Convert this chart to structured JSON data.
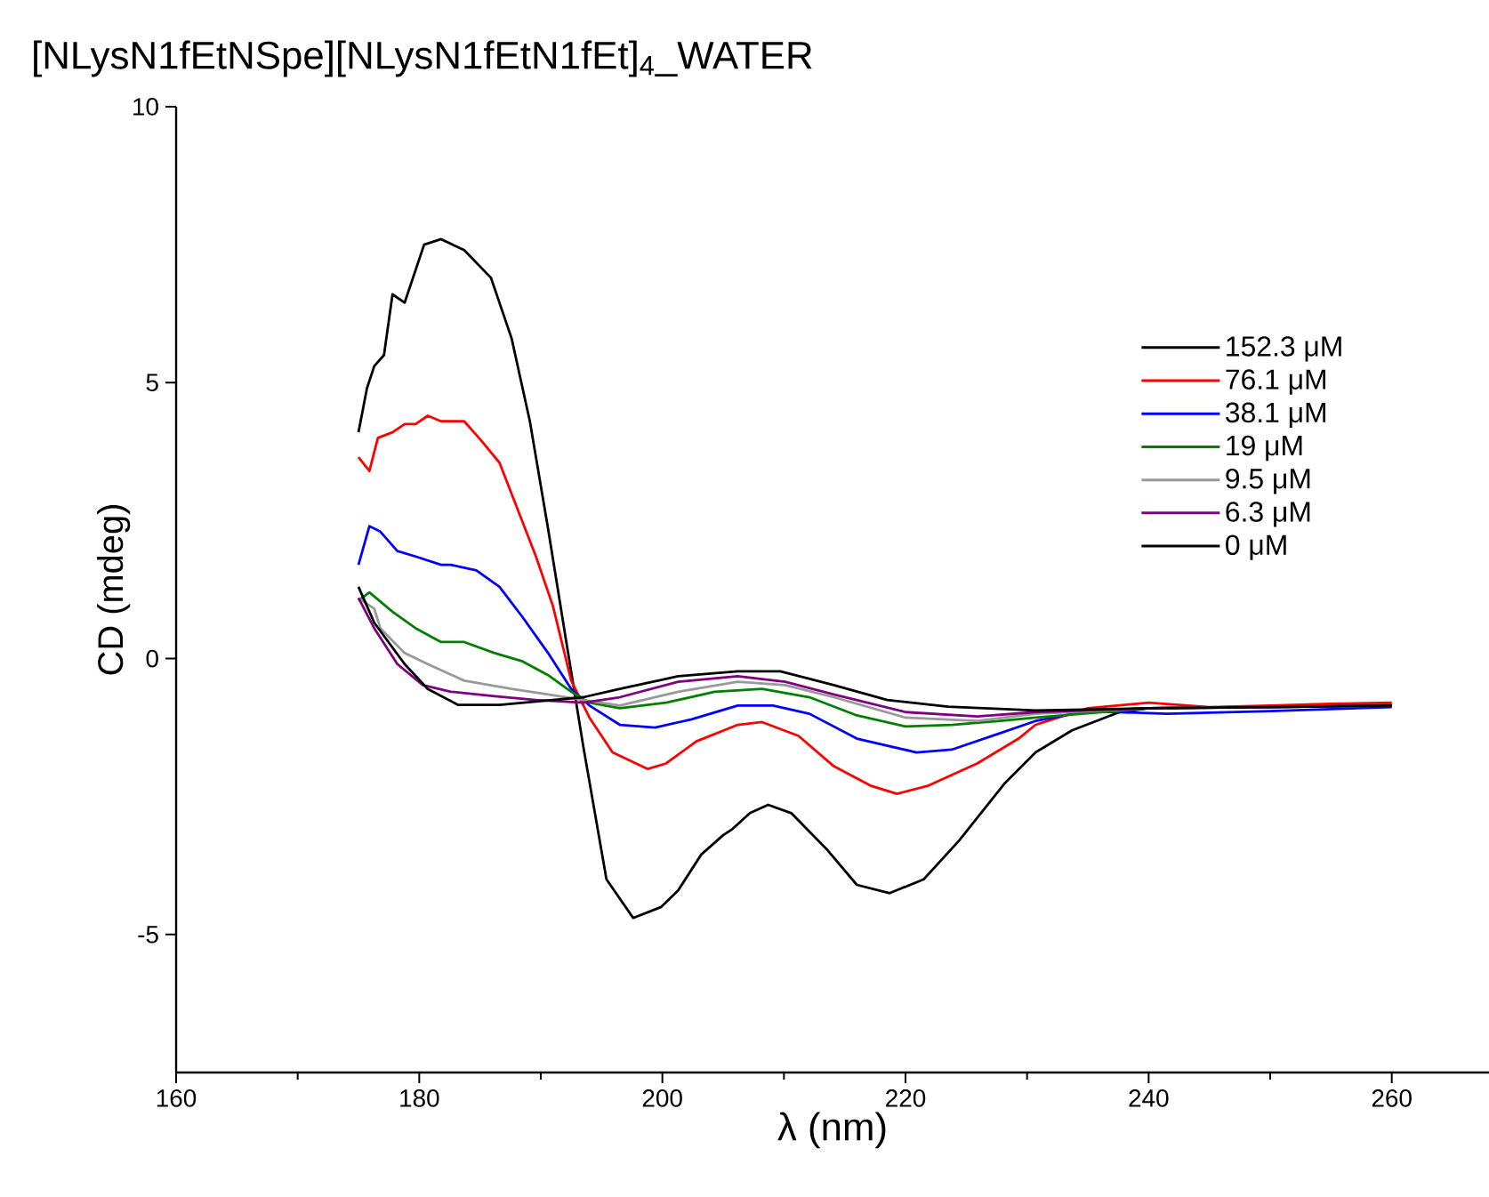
{
  "chart_data": {
    "type": "line",
    "title": "[NLysN1fEtNSpe][NLysN1fEtN1fEt]$_{4}$_WATER",
    "xlabel": "λ (nm)",
    "ylabel": "CD (mdeg)",
    "xlim": [
      160,
      268
    ],
    "ylim": [
      -7.5,
      10
    ],
    "xticks": [
      160,
      180,
      200,
      220,
      240,
      260
    ],
    "yticks": [
      -5,
      0,
      5,
      10
    ],
    "legend": "top right",
    "grid": false,
    "marker": "none",
    "line_style": "solid",
    "series": [
      {
        "name": "152.3 μM",
        "color": "#000000",
        "x": [
          175,
          175.7,
          176.3,
          177.1,
          177.8,
          178.8,
          180.4,
          181.8,
          183.7,
          185.9,
          187.6,
          189.1,
          190.6,
          192.1,
          193.5,
          195.4,
          197.6,
          199.9,
          201.3,
          203.2,
          205,
          205.7,
          207.2,
          208.7,
          210.6,
          213.5,
          216,
          218.7,
          221.5,
          224.4,
          228.2,
          230.7,
          233.7,
          237.6,
          240,
          250,
          260
        ],
        "values": [
          4.1,
          4.9,
          5.3,
          5.5,
          6.6,
          6.45,
          7.5,
          7.6,
          7.4,
          6.9,
          5.8,
          4.3,
          2.35,
          0.3,
          -1.6,
          -4.0,
          -4.7,
          -4.5,
          -4.2,
          -3.55,
          -3.2,
          -3.1,
          -2.8,
          -2.65,
          -2.8,
          -3.45,
          -4.1,
          -4.25,
          -4.0,
          -3.3,
          -2.25,
          -1.7,
          -1.3,
          -0.97,
          -0.9,
          -0.87,
          -0.84
        ]
      },
      {
        "name": "76.1 μM",
        "color": "#ff0000",
        "x": [
          175,
          175.9,
          176.6,
          177.8,
          178.8,
          179.7,
          180.7,
          181.8,
          183.7,
          185.1,
          186.6,
          188.1,
          189.6,
          191,
          192.5,
          194,
          195.9,
          198.8,
          200.3,
          202.8,
          206.2,
          208.2,
          211.2,
          214.1,
          217.1,
          219.3,
          221.9,
          225.9,
          229.3,
          230.7,
          235,
          240,
          245,
          250,
          255,
          260
        ],
        "values": [
          3.65,
          3.4,
          4.0,
          4.1,
          4.25,
          4.25,
          4.4,
          4.3,
          4.3,
          3.95,
          3.55,
          2.7,
          1.85,
          0.95,
          -0.4,
          -1.07,
          -1.7,
          -2.0,
          -1.9,
          -1.5,
          -1.2,
          -1.15,
          -1.4,
          -1.95,
          -2.3,
          -2.45,
          -2.3,
          -1.9,
          -1.45,
          -1.2,
          -0.9,
          -0.8,
          -0.88,
          -0.85,
          -0.82,
          -0.8
        ]
      },
      {
        "name": "38.1 μM",
        "color": "#0000ff",
        "x": [
          175,
          175.9,
          176.8,
          178.2,
          179.7,
          181.8,
          182.6,
          184.7,
          186.6,
          188.5,
          190.6,
          192.5,
          194,
          196.5,
          199.4,
          202.4,
          206.2,
          209.1,
          212.1,
          216,
          220.9,
          223.8,
          227.8,
          230.7,
          235,
          241.5,
          250,
          260
        ],
        "values": [
          1.7,
          2.4,
          2.3,
          1.95,
          1.85,
          1.7,
          1.7,
          1.6,
          1.3,
          0.75,
          0.1,
          -0.55,
          -0.85,
          -1.2,
          -1.25,
          -1.1,
          -0.85,
          -0.85,
          -1.0,
          -1.45,
          -1.7,
          -1.65,
          -1.35,
          -1.13,
          -0.95,
          -1.0,
          -0.95,
          -0.88
        ]
      },
      {
        "name": "19 μM",
        "color": "#008000",
        "x": [
          175,
          175.9,
          177.8,
          179.7,
          181.8,
          183.7,
          186.2,
          188.5,
          190.6,
          192.5,
          194,
          196.5,
          200.3,
          204.3,
          208.2,
          212.1,
          216,
          220,
          223.8,
          227.8,
          230.7,
          240,
          250,
          260
        ],
        "values": [
          1.05,
          1.2,
          0.85,
          0.55,
          0.3,
          0.3,
          0.1,
          -0.05,
          -0.3,
          -0.6,
          -0.8,
          -0.9,
          -0.8,
          -0.6,
          -0.55,
          -0.7,
          -1.03,
          -1.23,
          -1.2,
          -1.13,
          -1.07,
          -0.9,
          -0.88,
          -0.85
        ]
      },
      {
        "name": "9.5 μM",
        "color": "#999999",
        "x": [
          175,
          176.3,
          176.8,
          178.8,
          180.7,
          183.7,
          187.6,
          190.6,
          193.5,
          196.5,
          201.3,
          206.2,
          210.1,
          214.1,
          220,
          225.9,
          230.7,
          240,
          250,
          260
        ],
        "values": [
          1.1,
          0.9,
          0.55,
          0.1,
          -0.1,
          -0.4,
          -0.55,
          -0.65,
          -0.75,
          -0.85,
          -0.6,
          -0.42,
          -0.48,
          -0.7,
          -1.07,
          -1.13,
          -1.0,
          -0.9,
          -0.88,
          -0.85
        ]
      },
      {
        "name": "6.3 μM",
        "color": "#800080",
        "x": [
          175,
          176.3,
          178.2,
          180.3,
          182.6,
          186.2,
          189.6,
          193.5,
          196.5,
          201.3,
          206.2,
          210.1,
          214.1,
          220,
          225.9,
          230.7,
          240,
          250,
          260
        ],
        "values": [
          1.1,
          0.55,
          -0.1,
          -0.48,
          -0.6,
          -0.68,
          -0.75,
          -0.8,
          -0.7,
          -0.42,
          -0.32,
          -0.42,
          -0.65,
          -0.97,
          -1.05,
          -0.97,
          -0.9,
          -0.88,
          -0.85
        ]
      },
      {
        "name": "0 μM",
        "color": "#000000",
        "x": [
          175,
          176.3,
          178.8,
          180.7,
          183.2,
          186.6,
          190,
          193.5,
          196.5,
          201.3,
          206.2,
          209.7,
          214.1,
          218.5,
          223.5,
          230.7,
          240,
          250,
          260
        ],
        "values": [
          1.3,
          0.65,
          -0.1,
          -0.55,
          -0.84,
          -0.84,
          -0.77,
          -0.7,
          -0.55,
          -0.32,
          -0.23,
          -0.23,
          -0.48,
          -0.75,
          -0.87,
          -0.94,
          -0.9,
          -0.88,
          -0.85
        ]
      }
    ]
  }
}
